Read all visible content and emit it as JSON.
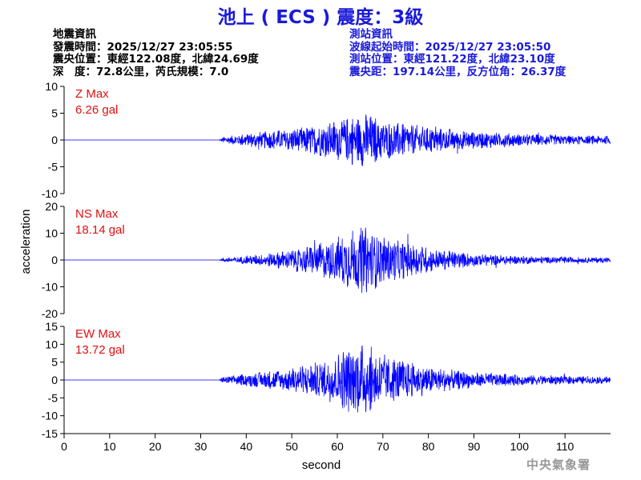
{
  "header": {
    "title": "池上 ( ECS ) 震度：3級"
  },
  "quake_info": {
    "heading": "地震資訊",
    "time": "發震時間：2025/12/27 23:05:55",
    "location": "震央位置：東經122.08度，北緯24.69度",
    "depth": "深　度：72.8公里，芮氏規模：7.0"
  },
  "station_info": {
    "heading": "測站資訊",
    "wave_start": "波線起始時間：2025/12/27 23:05:50",
    "location": "測站位置：東經121.22度，北緯23.10度",
    "distance": "震央距：197.14公里，反方位角：26.37度"
  },
  "footer": {
    "agency": "中央氣象署"
  },
  "colors": {
    "title": "#1a1ad8",
    "trace": "#0000ff",
    "max_label": "#e01010"
  },
  "chart_data": {
    "type": "line",
    "xlabel": "second",
    "ylabel": "acceleration",
    "xlim": [
      0,
      120
    ],
    "xticks": [
      0,
      10,
      20,
      30,
      40,
      50,
      60,
      70,
      80,
      90,
      100,
      110
    ],
    "xtick_labels": [
      "0",
      "10",
      "20",
      "30",
      "40",
      "50",
      "60",
      "70",
      "80",
      "90",
      "100",
      "110"
    ],
    "panels": [
      {
        "component": "Z",
        "max_label": "Z Max",
        "max_value": "6.26 gal",
        "ylim": [
          -10,
          10
        ],
        "yticks": [
          10,
          5,
          0,
          -5,
          -10
        ],
        "ytick_labels": [
          "10",
          "5",
          "0",
          "-5",
          "-10"
        ],
        "envelope": {
          "x": [
            0,
            34,
            35,
            40,
            50,
            58,
            62,
            66,
            70,
            76,
            82,
            90,
            100,
            110,
            120
          ],
          "amp": [
            0,
            0,
            0.6,
            1.3,
            2.2,
            3.4,
            4.5,
            5.2,
            4.0,
            3.0,
            2.4,
            1.7,
            1.2,
            0.9,
            0.8
          ]
        }
      },
      {
        "component": "NS",
        "max_label": "NS Max",
        "max_value": "18.14 gal",
        "ylim": [
          -20,
          20
        ],
        "yticks": [
          20,
          10,
          0,
          -10,
          -20
        ],
        "ytick_labels": [
          "20",
          "10",
          "0",
          "-10",
          "-20"
        ],
        "envelope": {
          "x": [
            0,
            34,
            35,
            40,
            50,
            58,
            62,
            66,
            70,
            76,
            82,
            90,
            100,
            110,
            120
          ],
          "amp": [
            0,
            0,
            0.8,
            1.5,
            4.0,
            7.5,
            10.5,
            13.5,
            9.0,
            6.5,
            4.0,
            2.5,
            1.6,
            1.2,
            1.0
          ]
        }
      },
      {
        "component": "EW",
        "max_label": "EW Max",
        "max_value": "13.72 gal",
        "ylim": [
          -15,
          15
        ],
        "yticks": [
          15,
          10,
          5,
          0,
          -5,
          -10,
          -15
        ],
        "ytick_labels": [
          "15",
          "10",
          "5",
          "0",
          "-5",
          "-10",
          "-15"
        ],
        "envelope": {
          "x": [
            0,
            34,
            35,
            40,
            50,
            58,
            62,
            66,
            70,
            76,
            82,
            90,
            100,
            110,
            120
          ],
          "amp": [
            0,
            0,
            1.0,
            1.8,
            3.5,
            6.0,
            9.5,
            10.5,
            7.5,
            5.0,
            3.5,
            2.2,
            1.6,
            1.2,
            1.0
          ]
        }
      }
    ]
  }
}
